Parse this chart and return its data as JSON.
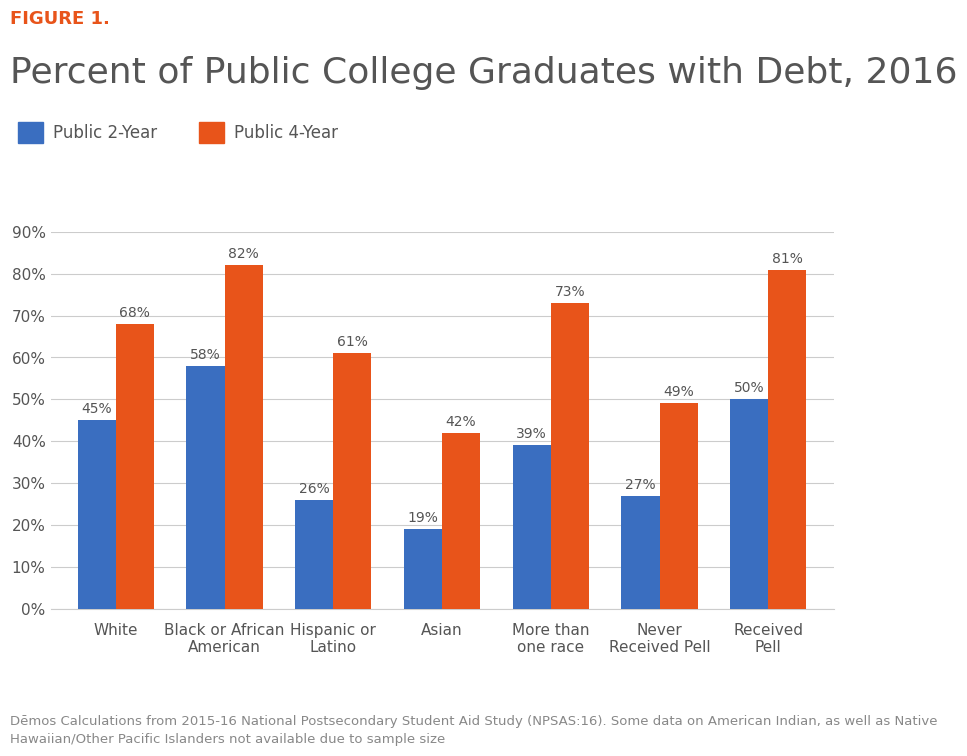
{
  "figure1_label": "FIGURE 1.",
  "figure1_color": "#E8541A",
  "title": "Percent of Public College Graduates with Debt, 2016",
  "title_color": "#555555",
  "legend_labels": [
    "Public 2-Year",
    "Public 4-Year"
  ],
  "color_2year": "#3A6EC0",
  "color_4year": "#E8541A",
  "categories": [
    "White",
    "Black or African\nAmerican",
    "Hispanic or\nLatino",
    "Asian",
    "More than\none race",
    "Never\nReceived Pell",
    "Received\nPell"
  ],
  "values_2year": [
    45,
    58,
    26,
    19,
    39,
    27,
    50
  ],
  "values_4year": [
    68,
    82,
    61,
    42,
    73,
    49,
    81
  ],
  "ylim": [
    0,
    90
  ],
  "yticks": [
    0,
    10,
    20,
    30,
    40,
    50,
    60,
    70,
    80,
    90
  ],
  "ytick_labels": [
    "0%",
    "10%",
    "20%",
    "30%",
    "40%",
    "50%",
    "60%",
    "70%",
    "80%",
    "90%"
  ],
  "footnote": "Dēmos Calculations from 2015-16 National Postsecondary Student Aid Study (NPSAS:16). Some data on American Indian, as well as Native\nHawaiian/Other Pacific Islanders not available due to sample size",
  "footnote_color": "#888888",
  "background_color": "#FFFFFF",
  "grid_color": "#CCCCCC",
  "bar_width": 0.35,
  "tick_label_fontsize": 11,
  "bar_label_fontsize": 10,
  "title_fontsize": 26,
  "figure1_fontsize": 13,
  "legend_fontsize": 12,
  "footnote_fontsize": 9.5
}
